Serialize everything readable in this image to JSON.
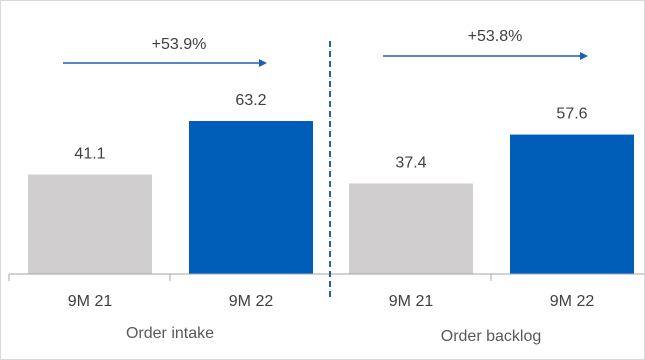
{
  "chart_data": {
    "type": "bar",
    "ylim": [
      0,
      80
    ],
    "grid": false,
    "colors": {
      "previous": "#d0cece",
      "current": "#005eb8",
      "axis": "#a6a6a6",
      "arrow": "#1f5fb0",
      "divider": "#1f5fb0"
    },
    "groups": [
      {
        "label": "Order intake",
        "categories": [
          "9M 21",
          "9M 22"
        ],
        "values": [
          41.1,
          63.2
        ],
        "value_labels": [
          "41.1",
          "63.2"
        ],
        "growth": "+53.9%"
      },
      {
        "label": "Order backlog",
        "categories": [
          "9M 21",
          "9M 22"
        ],
        "values": [
          37.4,
          57.6
        ],
        "value_labels": [
          "37.4",
          "57.6"
        ],
        "growth": "+53.8%"
      }
    ]
  }
}
